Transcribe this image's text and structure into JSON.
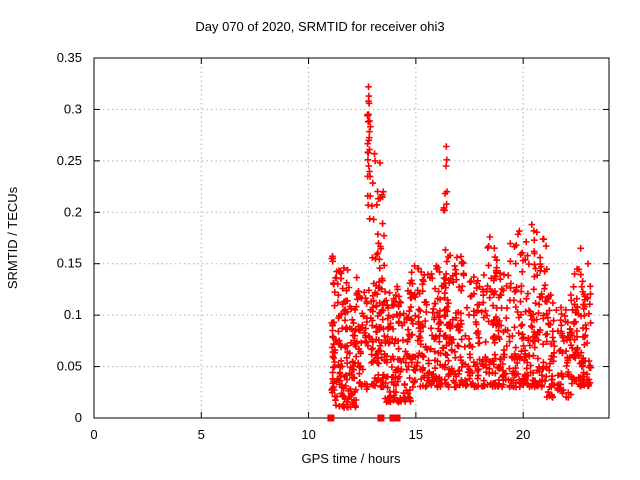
{
  "page": {
    "background": "#ffffff"
  },
  "chart_data": {
    "type": "scatter",
    "title": "Day 070 of 2020, SRMTID for receiver ohi3",
    "xlabel": "GPS time / hours",
    "ylabel": "SRMTID / TECUs",
    "xlim": [
      0,
      24
    ],
    "ylim": [
      0,
      0.35
    ],
    "xticks": [
      0,
      5,
      10,
      15,
      20
    ],
    "xtick_labels": [
      "0",
      "5",
      "10",
      "15",
      "20"
    ],
    "yticks": [
      0,
      0.05,
      0.1,
      0.15,
      0.2,
      0.25,
      0.3,
      0.35
    ],
    "ytick_labels": [
      "0",
      "0.05",
      "0.1",
      "0.15",
      "0.2",
      "0.25",
      "0.3",
      "0.35"
    ],
    "grid": true,
    "grid_style": "dotted",
    "legend": "none",
    "marker": "plus",
    "marker_color": "#ff0000",
    "grid_color": "#b0b0b0",
    "axis_color": "#000000",
    "data_extent_hours": [
      11.0,
      23.2
    ],
    "zero_flag_hours": [
      11.04,
      13.37,
      13.93,
      14.12
    ],
    "notable_points": [
      [
        12.79,
        0.322
      ],
      [
        12.81,
        0.313
      ],
      [
        12.79,
        0.308
      ],
      [
        12.82,
        0.306
      ],
      [
        12.8,
        0.295
      ],
      [
        12.78,
        0.288
      ],
      [
        12.81,
        0.27
      ],
      [
        12.84,
        0.261
      ],
      [
        12.8,
        0.245
      ],
      [
        13.07,
        0.257
      ],
      [
        13.1,
        0.25
      ],
      [
        13.33,
        0.248
      ],
      [
        13.48,
        0.22
      ],
      [
        13.45,
        0.215
      ],
      [
        16.42,
        0.264
      ],
      [
        16.44,
        0.251
      ],
      [
        16.41,
        0.245
      ],
      [
        16.45,
        0.22
      ],
      [
        16.43,
        0.208
      ],
      [
        20.4,
        0.188
      ],
      [
        20.5,
        0.182
      ],
      [
        18.45,
        0.176
      ],
      [
        22.68,
        0.165
      ],
      [
        11.08,
        0.155
      ],
      [
        23.02,
        0.15
      ]
    ],
    "cluster_model": {
      "seed": 20200070,
      "clusters": [
        {
          "x0": 11.02,
          "x1": 11.22,
          "n": 28,
          "ymin": 0.02,
          "ymax": 0.158,
          "bias": 1.1
        },
        {
          "x0": 11.08,
          "x1": 12.25,
          "n": 140,
          "ymin": 0.01,
          "ymax": 0.148,
          "bias": 1.35
        },
        {
          "x0": 12.25,
          "x1": 12.75,
          "n": 42,
          "ymin": 0.028,
          "ymax": 0.128,
          "bias": 1.4
        },
        {
          "x0": 12.74,
          "x1": 12.9,
          "n": 22,
          "ymin": 0.06,
          "ymax": 0.3,
          "bias": 1.05
        },
        {
          "x0": 12.9,
          "x1": 13.55,
          "n": 105,
          "ymin": 0.03,
          "ymax": 0.245,
          "bias": 1.6
        },
        {
          "x0": 13.55,
          "x1": 14.75,
          "n": 135,
          "ymin": 0.015,
          "ymax": 0.132,
          "bias": 1.45
        },
        {
          "x0": 14.75,
          "x1": 16.25,
          "n": 155,
          "ymin": 0.03,
          "ymax": 0.148,
          "bias": 1.45
        },
        {
          "x0": 16.28,
          "x1": 16.55,
          "n": 26,
          "ymin": 0.06,
          "ymax": 0.245,
          "bias": 1.2
        },
        {
          "x0": 16.3,
          "x1": 17.5,
          "n": 115,
          "ymin": 0.03,
          "ymax": 0.16,
          "bias": 1.55
        },
        {
          "x0": 17.5,
          "x1": 19.3,
          "n": 165,
          "ymin": 0.03,
          "ymax": 0.142,
          "bias": 1.5
        },
        {
          "x0": 18.33,
          "x1": 18.8,
          "n": 16,
          "ymin": 0.09,
          "ymax": 0.175,
          "bias": 1.05
        },
        {
          "x0": 19.3,
          "x1": 20.15,
          "n": 85,
          "ymin": 0.03,
          "ymax": 0.188,
          "bias": 1.7
        },
        {
          "x0": 20.15,
          "x1": 21.1,
          "n": 105,
          "ymin": 0.03,
          "ymax": 0.185,
          "bias": 1.7
        },
        {
          "x0": 21.1,
          "x1": 22.3,
          "n": 105,
          "ymin": 0.02,
          "ymax": 0.122,
          "bias": 1.45
        },
        {
          "x0": 22.3,
          "x1": 23.15,
          "n": 100,
          "ymin": 0.03,
          "ymax": 0.145,
          "bias": 1.45
        }
      ]
    }
  }
}
